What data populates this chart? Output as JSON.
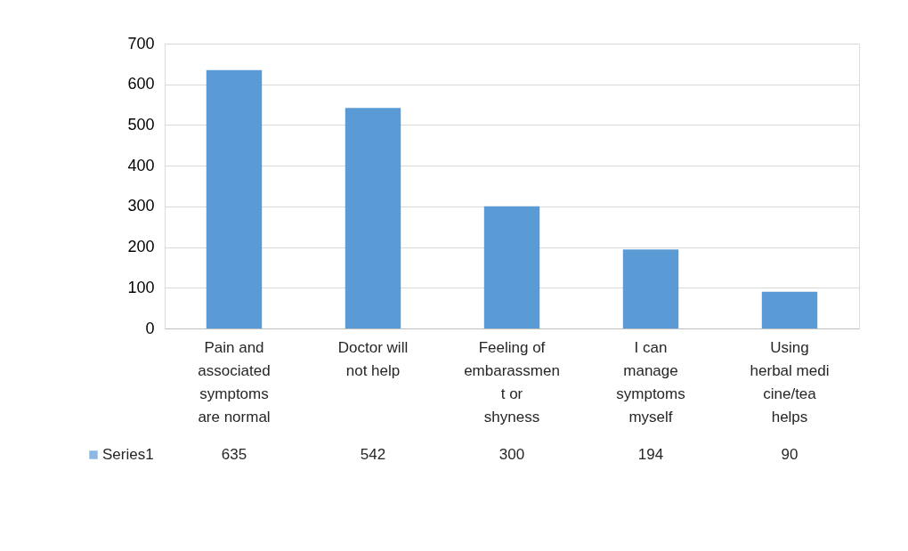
{
  "chart_data": {
    "type": "bar",
    "categories": [
      "Pain and associated symptoms are normal",
      "Doctor will not help",
      "Feeling of embarassment or shyness",
      "I can manage symptoms myself",
      "Using herbal medicine/tea helps"
    ],
    "series": [
      {
        "name": "Series1",
        "color": "#5b9bd5",
        "values": [
          635,
          542,
          300,
          194,
          90
        ]
      }
    ],
    "ylim": [
      0,
      700
    ],
    "yticks": [
      0,
      100,
      200,
      300,
      400,
      500,
      600,
      700
    ],
    "grid": "y",
    "data_labels": true,
    "legend": "bottom"
  }
}
